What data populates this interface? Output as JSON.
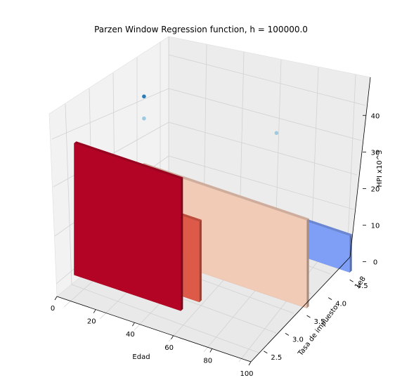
{
  "chart_data": {
    "type": "surface3d",
    "title": "Parzen Window Regression function, h = 100000.0",
    "xlabel": "Edad",
    "ylabel": "Tasa de impuesto",
    "zlabel": "HPI x10^3",
    "y_offset_label": "1e8",
    "x_ticks": [
      0,
      20,
      40,
      60,
      80,
      100
    ],
    "y_ticks": [
      2.5,
      3.0,
      3.5,
      4.0,
      4.5
    ],
    "z_ticks": [
      0,
      10,
      20,
      30,
      40
    ],
    "x_tick_labels": [
      "0",
      "20",
      "40",
      "60",
      "80",
      "100"
    ],
    "y_tick_labels": [
      "2.5",
      "3.0",
      "3.5",
      "4.0",
      "4.5"
    ],
    "z_tick_labels": [
      "0",
      "10",
      "20",
      "30",
      "40"
    ],
    "xlim": [
      0,
      100
    ],
    "ylim": [
      2.2,
      4.8
    ],
    "zlim": [
      -2,
      46
    ],
    "colormap": "coolwarm",
    "grid": true,
    "surface_slabs": [
      {
        "y": 4.5,
        "x_range": [
          20,
          100
        ],
        "z": 10,
        "color": "#7f9ff7"
      },
      {
        "y": 3.5,
        "x_range": [
          15,
          100
        ],
        "z": 24,
        "color": "#f2cbb7"
      },
      {
        "y": 2.9,
        "x_range": [
          0,
          58
        ],
        "z": 22,
        "color": "#dd5a48"
      },
      {
        "y": 2.6,
        "x_range": [
          0,
          55
        ],
        "z": 15,
        "color": "#f2cbb7"
      },
      {
        "y": 2.6,
        "x_range": [
          0,
          55
        ],
        "z": 36,
        "color": "#b40426"
      }
    ],
    "scatter_points": [
      {
        "x": 5,
        "y": 4.0,
        "z": 36
      },
      {
        "x": 5,
        "y": 4.0,
        "z": 30
      },
      {
        "x": 60,
        "y": 4.6,
        "z": 30
      }
    ]
  }
}
